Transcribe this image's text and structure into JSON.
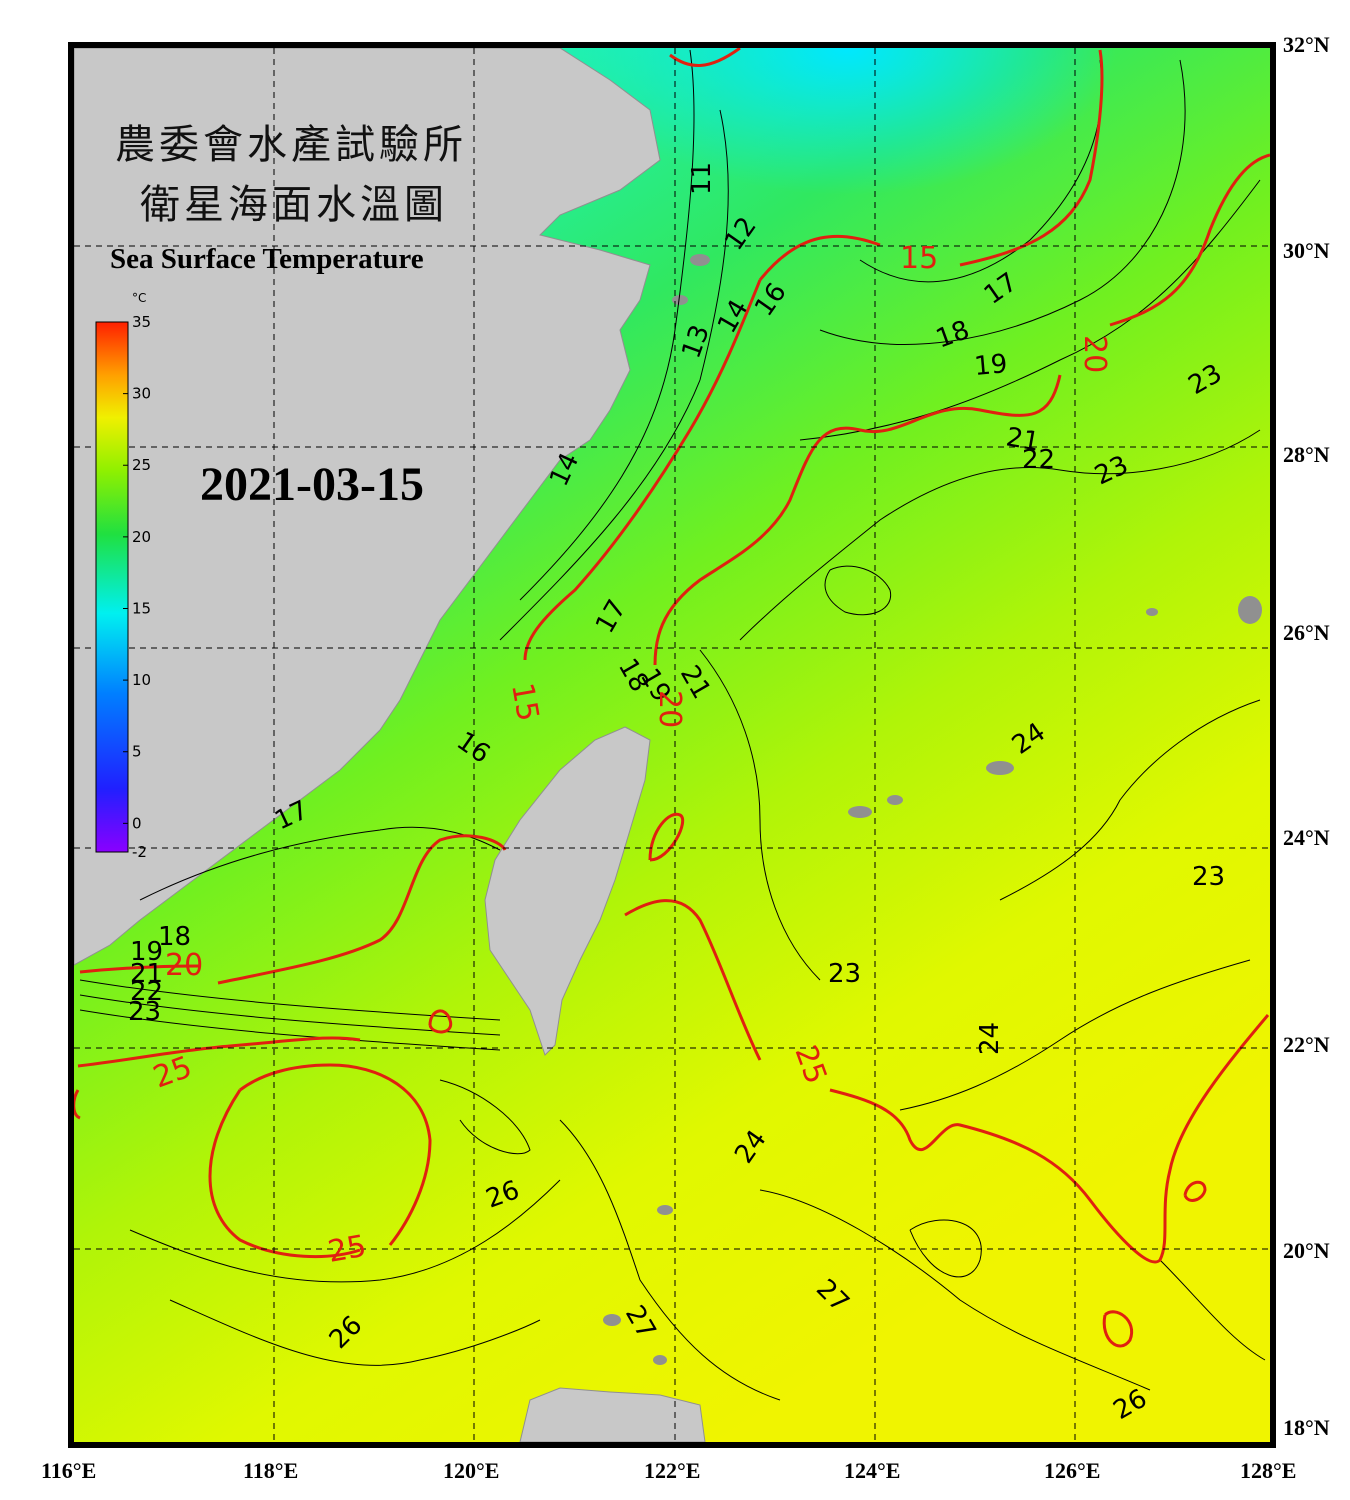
{
  "title": {
    "line1": "農委會水產試驗所",
    "line2": "衛星海面水溫圖",
    "english": "Sea Surface Temperature"
  },
  "date": "2021-03-15",
  "colorbar": {
    "unit": "°C",
    "ticks": [
      "35",
      "30",
      "25",
      "20",
      "15",
      "10",
      "5",
      "0",
      "-2"
    ],
    "min": -2,
    "max": 35
  },
  "axes": {
    "longitude_labels": [
      "116°E",
      "118°E",
      "120°E",
      "122°E",
      "124°E",
      "126°E",
      "128°E"
    ],
    "latitude_labels": [
      "32°N",
      "30°N",
      "28°N",
      "26°N",
      "24°N",
      "22°N",
      "20°N",
      "18°N"
    ],
    "lon_range": [
      116,
      128
    ],
    "lat_range": [
      18,
      32
    ]
  },
  "contour_labels": {
    "black": [
      "11",
      "12",
      "13",
      "14",
      "16",
      "14",
      "17",
      "18",
      "19",
      "21",
      "22",
      "23",
      "23",
      "17",
      "18",
      "19",
      "21",
      "16",
      "17",
      "18",
      "19",
      "21",
      "22",
      "23",
      "24",
      "23",
      "23",
      "24",
      "24",
      "26",
      "26",
      "26",
      "27",
      "27",
      "26"
    ],
    "red": [
      "15",
      "20",
      "15",
      "20",
      "20",
      "25",
      "25",
      "25"
    ]
  },
  "colors": {
    "land": "#c8c8c8",
    "contour_major": "#e02010",
    "contour_minor": "#000000",
    "cold_water": "#10f0f0",
    "mid_water": "#30e060",
    "warm_water": "#e8f800"
  }
}
